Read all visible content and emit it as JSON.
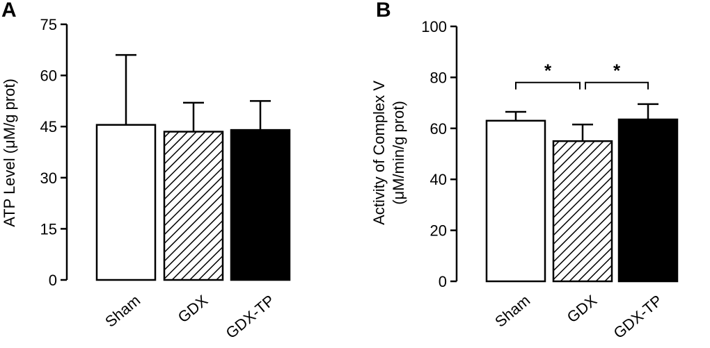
{
  "chart_data": [
    {
      "type": "bar",
      "panel_label": "A",
      "categories": [
        "Sham",
        "GDX",
        "GDX-TP"
      ],
      "values": [
        45.5,
        43.5,
        44
      ],
      "errors": [
        20.5,
        8.5,
        8.5
      ],
      "fills": [
        "white",
        "hatched",
        "black"
      ],
      "ylabel": "ATP Level (μM/g prot)",
      "ylim": [
        0,
        75
      ],
      "yticks": [
        0,
        15,
        30,
        45,
        60,
        75
      ],
      "significance": []
    },
    {
      "type": "bar",
      "panel_label": "B",
      "categories": [
        "Sham",
        "GDX",
        "GDX-TP"
      ],
      "values": [
        63,
        55,
        63.5
      ],
      "errors": [
        3.5,
        6.5,
        6
      ],
      "fills": [
        "white",
        "hatched",
        "black"
      ],
      "ylabel": "Activity of Complex V",
      "ylabel2": "(μM/min/g prot)",
      "ylim": [
        0,
        100
      ],
      "yticks": [
        0,
        20,
        40,
        60,
        80,
        100
      ],
      "significance": [
        {
          "from": 0,
          "to": 1,
          "label": "*",
          "level": 78
        },
        {
          "from": 1,
          "to": 2,
          "label": "*",
          "level": 78
        }
      ]
    }
  ]
}
